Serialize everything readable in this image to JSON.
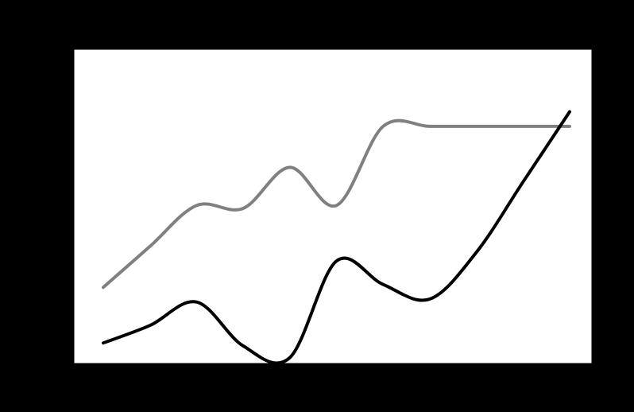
{
  "colors": {
    "figure_background": "#000000",
    "plot_background": "#ffffff",
    "axes_edge": "#000000"
  },
  "chart_data": {
    "type": "line",
    "title": "",
    "xlabel": "",
    "ylabel": "",
    "xlim": [
      0,
      10
    ],
    "ylim": [
      0,
      100
    ],
    "grid": false,
    "legend": "none",
    "x": [
      0,
      1,
      2,
      3,
      4,
      5,
      6,
      7,
      8,
      9,
      10
    ],
    "series": [
      {
        "color": "#808080",
        "values": [
          26,
          40,
          54,
          53,
          67,
          54,
          81,
          81,
          81,
          81,
          81
        ]
      },
      {
        "color": "#000000",
        "values": [
          7,
          13,
          21,
          6,
          2,
          35,
          27,
          22,
          38,
          62,
          86
        ]
      }
    ]
  }
}
